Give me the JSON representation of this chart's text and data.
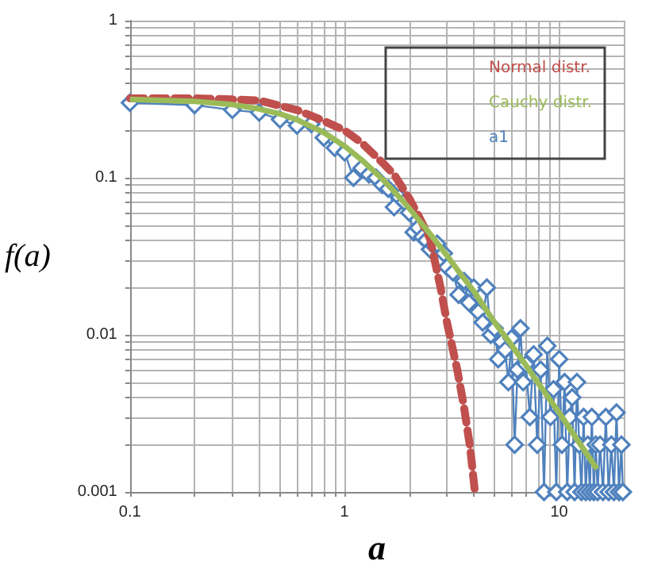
{
  "chart_data": {
    "type": "line",
    "xlabel": "a",
    "ylabel": "f(a)",
    "log": "xy",
    "grid": true,
    "legend": "top right",
    "xlim": [
      0.1,
      20
    ],
    "ylim": [
      0.001,
      1
    ],
    "xticks": [
      0.1,
      {
        "value": 0.2,
        "label": null
      },
      {
        "value": 0.3,
        "label": null
      },
      {
        "value": 0.4,
        "label": null
      },
      {
        "value": 0.5,
        "label": null
      },
      {
        "value": 0.6,
        "label": null
      },
      {
        "value": 0.7,
        "label": null
      },
      {
        "value": 0.8,
        "label": null
      },
      {
        "value": 0.9,
        "label": null
      },
      1,
      {
        "value": 2,
        "label": null
      },
      {
        "value": 3,
        "label": null
      },
      {
        "value": 4,
        "label": null
      },
      {
        "value": 5,
        "label": null
      },
      {
        "value": 6,
        "label": null
      },
      {
        "value": 7,
        "label": null
      },
      {
        "value": 8,
        "label": null
      },
      {
        "value": 9,
        "label": null
      },
      10,
      {
        "value": 20,
        "label": null
      }
    ],
    "yticks": [
      0.001,
      {
        "value": 0.002,
        "label": null
      },
      {
        "value": 0.003,
        "label": null
      },
      {
        "value": 0.004,
        "label": null
      },
      {
        "value": 0.005,
        "label": null
      },
      {
        "value": 0.006,
        "label": null
      },
      {
        "value": 0.007,
        "label": null
      },
      {
        "value": 0.008,
        "label": null
      },
      {
        "value": 0.009,
        "label": null
      },
      0.01,
      {
        "value": 0.02,
        "label": null
      },
      {
        "value": 0.03,
        "label": null
      },
      {
        "value": 0.04,
        "label": null
      },
      {
        "value": 0.05,
        "label": null
      },
      {
        "value": 0.06,
        "label": null
      },
      {
        "value": 0.07,
        "label": null
      },
      {
        "value": 0.08,
        "label": null
      },
      {
        "value": 0.09,
        "label": null
      },
      0.1,
      {
        "value": 0.2,
        "label": null
      },
      {
        "value": 0.3,
        "label": null
      },
      {
        "value": 0.4,
        "label": null
      },
      {
        "value": 0.5,
        "label": null
      },
      {
        "value": 0.6,
        "label": null
      },
      {
        "value": 0.7,
        "label": null
      },
      {
        "value": 0.8,
        "label": null
      },
      {
        "value": 0.9,
        "label": null
      },
      1
    ],
    "series": [
      {
        "name": "Normal distr.",
        "color": "#c0504d",
        "line_style": "dashed",
        "marker": "none",
        "x": [
          0.1,
          0.2,
          0.3,
          0.4,
          0.6,
          0.8,
          1.0,
          1.2,
          1.5,
          1.7,
          2.0,
          2.2,
          2.5,
          2.8,
          3.0,
          3.35,
          3.6,
          3.85,
          4.05
        ],
        "values": [
          0.32,
          0.32,
          0.315,
          0.31,
          0.27,
          0.23,
          0.2,
          0.167,
          0.125,
          0.105,
          0.074,
          0.058,
          0.041,
          0.02,
          0.012,
          0.006,
          0.0035,
          0.0019,
          0.001
        ]
      },
      {
        "name": "Cauchy distr.",
        "color": "#9bbb59",
        "line_style": "solid",
        "marker": "none",
        "x": [
          0.1,
          0.2,
          0.3,
          0.4,
          0.5,
          0.6,
          0.8,
          1.0,
          1.2,
          1.5,
          1.7,
          2.0,
          2.5,
          3.0,
          3.5,
          4.0,
          5.0,
          6.0,
          7.0,
          8.0,
          10.0,
          12.0,
          15.0
        ],
        "values": [
          0.315,
          0.306,
          0.292,
          0.274,
          0.255,
          0.234,
          0.194,
          0.159,
          0.13,
          0.098,
          0.082,
          0.064,
          0.044,
          0.032,
          0.024,
          0.019,
          0.012,
          0.0086,
          0.0064,
          0.0049,
          0.0032,
          0.0022,
          0.0014
        ]
      },
      {
        "name": "a1",
        "color": "#4f81bd",
        "line_style": "solid",
        "marker": "diamond",
        "x": [
          0.1,
          0.2,
          0.3,
          0.4,
          0.5,
          0.6,
          0.7,
          0.8,
          0.9,
          1.0,
          1.1,
          1.2,
          1.3,
          1.4,
          1.5,
          1.6,
          1.7,
          1.8,
          1.9,
          2.0,
          2.1,
          2.2,
          2.3,
          2.4,
          2.5,
          2.6,
          2.7,
          2.8,
          2.9,
          3.0,
          3.2,
          3.4,
          3.6,
          3.8,
          4.0,
          4.2,
          4.4,
          4.6,
          4.8,
          5.0,
          5.2,
          5.4,
          5.6,
          5.8,
          6.0,
          6.2,
          6.4,
          6.6,
          6.8,
          7.0,
          7.3,
          7.6,
          7.9,
          8.2,
          8.5,
          8.8,
          9.1,
          9.4,
          9.7,
          10,
          10.3,
          10.6,
          10.9,
          11.2,
          11.5,
          11.8,
          12.1,
          12.4,
          12.7,
          13,
          13.3,
          13.6,
          13.9,
          14.2,
          14.5,
          14.8,
          15.1,
          15.5,
          16,
          16.5,
          17,
          17.5,
          18,
          18.5,
          19,
          19.5,
          19.8
        ],
        "values": [
          0.3,
          0.29,
          0.27,
          0.26,
          0.235,
          0.215,
          0.22,
          0.18,
          0.155,
          0.145,
          0.1,
          0.115,
          0.105,
          0.1,
          0.09,
          0.085,
          0.065,
          0.075,
          0.07,
          0.06,
          0.045,
          0.048,
          0.042,
          0.04,
          0.035,
          0.037,
          0.038,
          0.03,
          0.033,
          0.027,
          0.025,
          0.018,
          0.022,
          0.016,
          0.02,
          0.014,
          0.012,
          0.02,
          0.01,
          0.011,
          0.007,
          0.009,
          0.008,
          0.005,
          0.0095,
          0.002,
          0.006,
          0.011,
          0.005,
          0.0065,
          0.003,
          0.0075,
          0.002,
          0.006,
          0.001,
          0.0085,
          0.003,
          0.0045,
          0.001,
          0.007,
          0.002,
          0.005,
          0.001,
          0.003,
          0.004,
          0.001,
          0.005,
          0.002,
          0.001,
          0.003,
          0.001,
          0.002,
          0.001,
          0.003,
          0.001,
          0.002,
          0.001,
          0.002,
          0.001,
          0.003,
          0.001,
          0.002,
          0.001,
          0.0032,
          0.001,
          0.002,
          0.001
        ]
      }
    ]
  }
}
